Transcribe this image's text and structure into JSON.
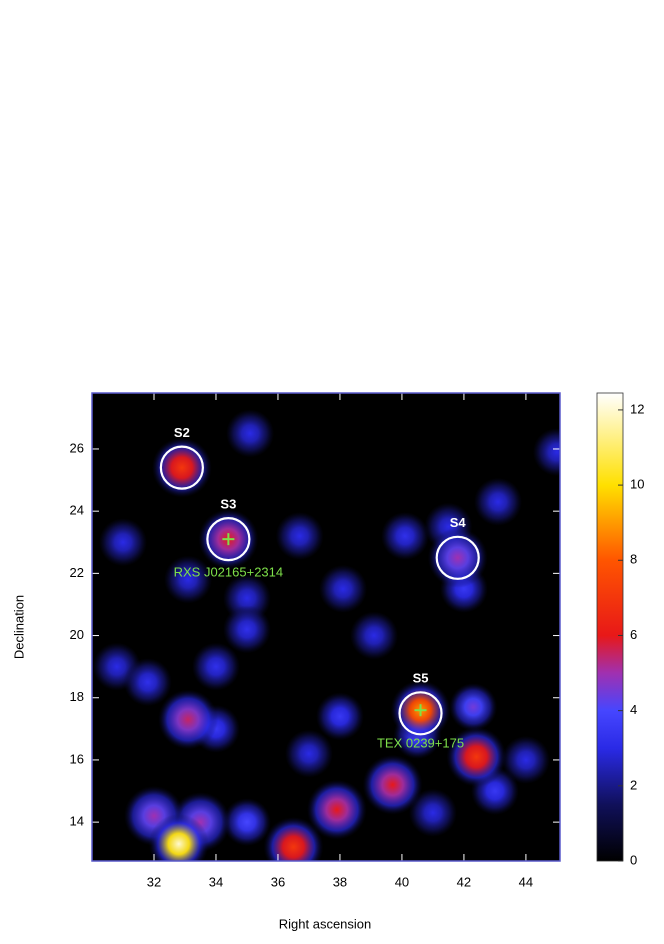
{
  "chart_data": {
    "type": "heatmap",
    "xlabel": "Right ascension",
    "ylabel": "Declination",
    "xlim": [
      30.0,
      45.1
    ],
    "ylim": [
      12.75,
      27.8
    ],
    "xticks": [
      32,
      34,
      36,
      38,
      40,
      42,
      44
    ],
    "yticks": [
      14,
      16,
      18,
      20,
      22,
      24,
      26
    ],
    "x": [
      32.8,
      32.9,
      34.4,
      41.8,
      40.6,
      42.4,
      39.7,
      36.5,
      37.9,
      33.1,
      42.3,
      31.0,
      35.1,
      36.7,
      40.1,
      43.1,
      45.0,
      33.1,
      35.0,
      38.1,
      39.1,
      30.8,
      31.8,
      34.0,
      35.0,
      42.0,
      38.0,
      37.0,
      35.0,
      44.0,
      43.0,
      41.0,
      34.0,
      33.5,
      32.0,
      40.5,
      41.5
    ],
    "y": [
      13.3,
      25.4,
      23.1,
      22.5,
      17.6,
      16.1,
      15.2,
      13.2,
      14.4,
      17.3,
      17.7,
      23.0,
      26.5,
      23.2,
      23.2,
      24.3,
      25.9,
      21.8,
      21.2,
      21.5,
      20.0,
      19.0,
      18.5,
      19.0,
      20.2,
      21.5,
      17.4,
      16.2,
      14.0,
      16.0,
      15.0,
      14.3,
      17.0,
      14.0,
      14.2,
      16.8,
      23.5
    ],
    "values": [
      12,
      7,
      6,
      5,
      9,
      7,
      6,
      7,
      6,
      5.5,
      4.5,
      3,
      3,
      3,
      3.2,
      3,
      3,
      3,
      3,
      3,
      3,
      3,
      3.2,
      3.2,
      3.2,
      3.5,
      3.5,
      3,
      4,
      3,
      3.5,
      3,
      3.5,
      5,
      5,
      4,
      3
    ],
    "colorbar": {
      "lim": [
        0,
        12.45
      ],
      "ticks": [
        0,
        2,
        4,
        6,
        8,
        10,
        12
      ]
    },
    "colormap": [
      {
        "value": 0,
        "color": "#000000"
      },
      {
        "value": 1.5,
        "color": "#10105a"
      },
      {
        "value": 3,
        "color": "#2a2ae6"
      },
      {
        "value": 4,
        "color": "#4646ff"
      },
      {
        "value": 5,
        "color": "#a030b0"
      },
      {
        "value": 6,
        "color": "#e81818"
      },
      {
        "value": 8,
        "color": "#ff5500"
      },
      {
        "value": 10,
        "color": "#ffe000"
      },
      {
        "value": 12.45,
        "color": "#ffffff"
      }
    ],
    "sources": [
      {
        "label": "S2",
        "x": 32.9,
        "y": 25.4
      },
      {
        "label": "S3",
        "x": 34.4,
        "y": 23.1
      },
      {
        "label": "S4",
        "x": 41.8,
        "y": 22.5
      },
      {
        "label": "S5",
        "x": 40.6,
        "y": 17.5
      }
    ],
    "counterparts": [
      {
        "label": "RXS J02165+2314",
        "x": 34.4,
        "y": 23.1
      },
      {
        "label": "TEX 0239+175",
        "x": 40.6,
        "y": 17.6
      }
    ]
  }
}
